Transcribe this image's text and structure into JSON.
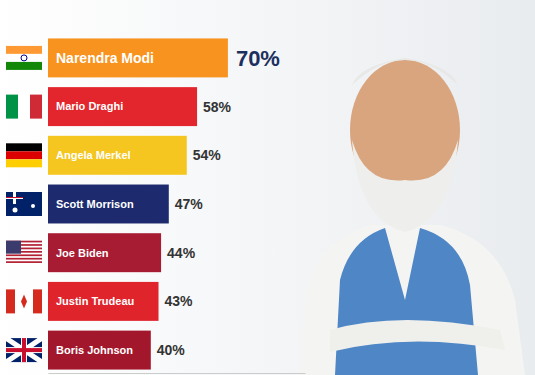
{
  "chart_data": {
    "type": "bar",
    "orientation": "horizontal",
    "categories": [
      "Narendra Modi",
      "Mario Draghi",
      "Angela Merkel",
      "Scott Morrison",
      "Joe Biden",
      "Justin Trudeau",
      "Boris Johnson"
    ],
    "values": [
      70,
      58,
      54,
      47,
      44,
      43,
      40
    ],
    "value_labels": [
      "70%",
      "58%",
      "54%",
      "47%",
      "44%",
      "43%",
      "40%"
    ],
    "colors": [
      "#f7931e",
      "#e3262d",
      "#f4c61f",
      "#1d2b6e",
      "#a81c33",
      "#e0242c",
      "#a3172c"
    ],
    "xlim": [
      0,
      100
    ],
    "data_labels": true,
    "tick_labels": false
  }
}
